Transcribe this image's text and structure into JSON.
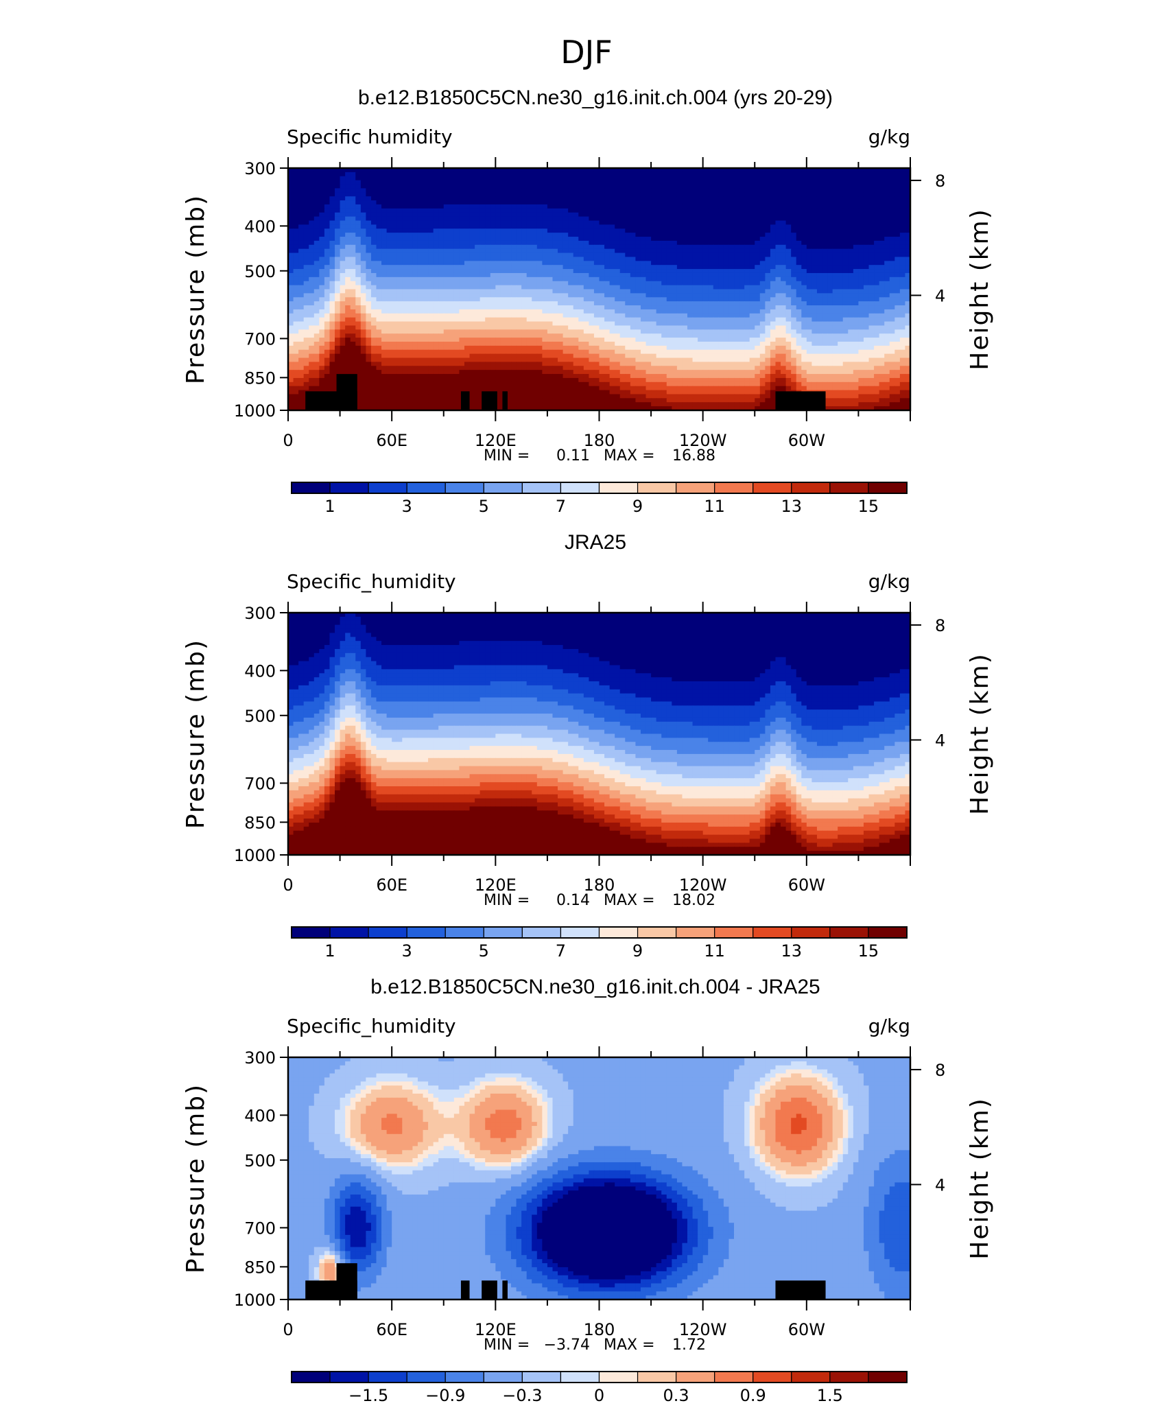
{
  "figure": {
    "title": "DJF",
    "x_tick_labels": [
      "0",
      "60E",
      "120E",
      "180",
      "120W",
      "60W"
    ],
    "y_tick_labels": [
      "300",
      "400",
      "500",
      "700",
      "850",
      "1000"
    ],
    "y_left_label": "Pressure (mb)",
    "y_right_label": "Height (km)",
    "y_right_tick_labels": [
      "8",
      "4"
    ],
    "min_prefix": "MIN =",
    "max_prefix": "MAX ="
  },
  "chart_data": [
    {
      "type": "heatmap",
      "title": "b.e12.B1850C5CN.ne30_g16.init.ch.004 (yrs 20-29)",
      "left_string": "Specific humidity",
      "right_string": "g/kg",
      "min": "0.11",
      "max": "16.88",
      "colorbar_labels": [
        "1",
        "3",
        "5",
        "7",
        "9",
        "11",
        "13",
        "15"
      ],
      "colorbar": [
        "#00007a",
        "#0013a6",
        "#0d3fcd",
        "#2361dc",
        "#4a83e8",
        "#79a4f0",
        "#a5c3f7",
        "#d0e1fb",
        "#fde9da",
        "#f9c8a6",
        "#f6a27a",
        "#f2794f",
        "#e34a22",
        "#c22a0c",
        "#9a1205",
        "#700000"
      ],
      "ylim": [
        1000,
        300
      ],
      "xlim": [
        0,
        360
      ]
    },
    {
      "type": "heatmap",
      "title": "JRA25",
      "left_string": "Specific_humidity",
      "right_string": "g/kg",
      "min": "0.14",
      "max": "18.02",
      "colorbar_labels": [
        "1",
        "3",
        "5",
        "7",
        "9",
        "11",
        "13",
        "15"
      ],
      "colorbar": [
        "#00007a",
        "#0013a6",
        "#0d3fcd",
        "#2361dc",
        "#4a83e8",
        "#79a4f0",
        "#a5c3f7",
        "#d0e1fb",
        "#fde9da",
        "#f9c8a6",
        "#f6a27a",
        "#f2794f",
        "#e34a22",
        "#c22a0c",
        "#9a1205",
        "#700000"
      ],
      "ylim": [
        1000,
        300
      ],
      "xlim": [
        0,
        360
      ]
    },
    {
      "type": "heatmap",
      "title": "b.e12.B1850C5CN.ne30_g16.init.ch.004 - JRA25",
      "left_string": "Specific_humidity",
      "right_string": "g/kg",
      "min": "−3.74",
      "max": "1.72",
      "colorbar_labels": [
        "−1.5",
        "−0.9",
        "−0.3",
        "0",
        "0.3",
        "0.9",
        "1.5"
      ],
      "colorbar": [
        "#00007a",
        "#0013a6",
        "#0d3fcd",
        "#2361dc",
        "#4a83e8",
        "#79a4f0",
        "#a5c3f7",
        "#d0e1fb",
        "#fde9da",
        "#f9c8a6",
        "#f6a27a",
        "#f2794f",
        "#e34a22",
        "#c22a0c",
        "#9a1205",
        "#700000"
      ],
      "ylim": [
        1000,
        300
      ],
      "xlim": [
        0,
        360
      ]
    }
  ]
}
